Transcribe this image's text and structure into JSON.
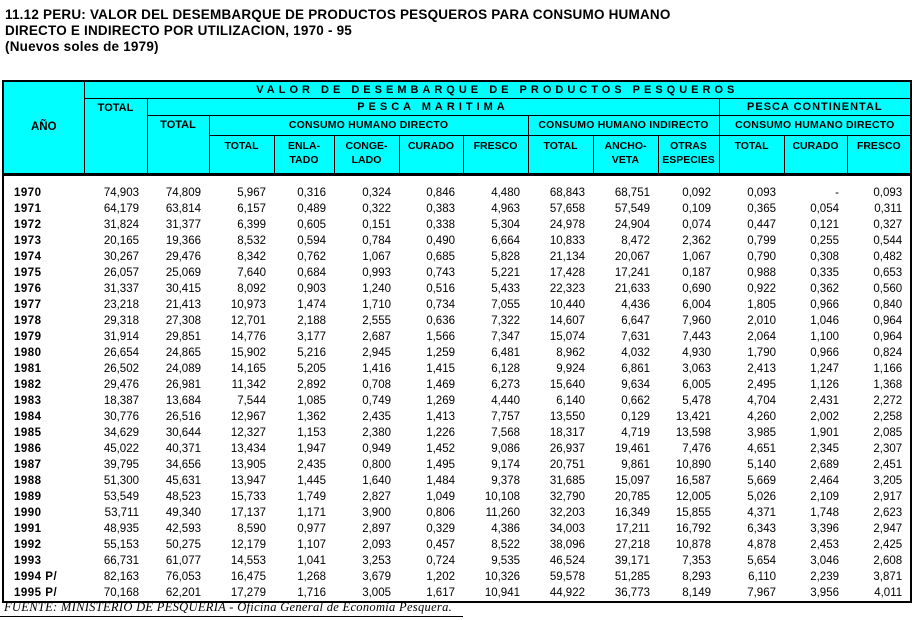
{
  "title": {
    "line1": "11.12   PERU:  VALOR DEL DESEMBARQUE DE PRODUCTOS PESQUEROS PARA CONSUMO HUMANO",
    "line2": "DIRECTO E INDIRECTO POR UTILIZACION, 1970 - 95",
    "line3": "(Nuevos soles  de  1979)"
  },
  "table": {
    "header": {
      "anio": "AÑO",
      "total": "TOTAL",
      "valor": "VALOR  DE  DESEMBARQUE  DE  PRODUCTOS  PESQUEROS",
      "pesca_maritima": "PESCA    MARITIMA",
      "pesca_continental": "PESCA   CONTINENTAL",
      "pm_total": "TOTAL",
      "chd": "CONSUMO HUMANO DIRECTO",
      "chi": "CONSUMO HUMANO INDIRECTO",
      "pc_chd": "CONSUMO HUMANO DIRECTO",
      "sub": [
        "TOTAL",
        "ENLA-\nTADO",
        "CONGE-\nLADO",
        "CURADO",
        "FRESCO",
        "TOTAL",
        "ANCHO-\nVETA",
        "OTRAS\nESPECIES",
        "TOTAL",
        "CURADO",
        "FRESCO"
      ]
    },
    "rows": [
      {
        "year": "1970",
        "values": [
          "74,903",
          "74,809",
          "5,967",
          "0,316",
          "0,324",
          "0,846",
          "4,480",
          "68,843",
          "68,751",
          "0,092",
          "0,093",
          "-",
          "0,093"
        ]
      },
      {
        "year": "1971",
        "values": [
          "64,179",
          "63,814",
          "6,157",
          "0,489",
          "0,322",
          "0,383",
          "4,963",
          "57,658",
          "57,549",
          "0,109",
          "0,365",
          "0,054",
          "0,311"
        ]
      },
      {
        "year": "1972",
        "values": [
          "31,824",
          "31,377",
          "6,399",
          "0,605",
          "0,151",
          "0,338",
          "5,304",
          "24,978",
          "24,904",
          "0,074",
          "0,447",
          "0,121",
          "0,327"
        ]
      },
      {
        "year": "1973",
        "values": [
          "20,165",
          "19,366",
          "8,532",
          "0,594",
          "0,784",
          "0,490",
          "6,664",
          "10,833",
          "8,472",
          "2,362",
          "0,799",
          "0,255",
          "0,544"
        ]
      },
      {
        "year": "1974",
        "values": [
          "30,267",
          "29,476",
          "8,342",
          "0,762",
          "1,067",
          "0,685",
          "5,828",
          "21,134",
          "20,067",
          "1,067",
          "0,790",
          "0,308",
          "0,482"
        ]
      },
      {
        "year": "1975",
        "values": [
          "26,057",
          "25,069",
          "7,640",
          "0,684",
          "0,993",
          "0,743",
          "5,221",
          "17,428",
          "17,241",
          "0,187",
          "0,988",
          "0,335",
          "0,653"
        ]
      },
      {
        "year": "1976",
        "values": [
          "31,337",
          "30,415",
          "8,092",
          "0,903",
          "1,240",
          "0,516",
          "5,433",
          "22,323",
          "21,633",
          "0,690",
          "0,922",
          "0,362",
          "0,560"
        ]
      },
      {
        "year": "1977",
        "values": [
          "23,218",
          "21,413",
          "10,973",
          "1,474",
          "1,710",
          "0,734",
          "7,055",
          "10,440",
          "4,436",
          "6,004",
          "1,805",
          "0,966",
          "0,840"
        ]
      },
      {
        "year": "1978",
        "values": [
          "29,318",
          "27,308",
          "12,701",
          "2,188",
          "2,555",
          "0,636",
          "7,322",
          "14,607",
          "6,647",
          "7,960",
          "2,010",
          "1,046",
          "0,964"
        ]
      },
      {
        "year": "1979",
        "values": [
          "31,914",
          "29,851",
          "14,776",
          "3,177",
          "2,687",
          "1,566",
          "7,347",
          "15,074",
          "7,631",
          "7,443",
          "2,064",
          "1,100",
          "0,964"
        ]
      },
      {
        "year": "1980",
        "values": [
          "26,654",
          "24,865",
          "15,902",
          "5,216",
          "2,945",
          "1,259",
          "6,481",
          "8,962",
          "4,032",
          "4,930",
          "1,790",
          "0,966",
          "0,824"
        ]
      },
      {
        "year": "1981",
        "values": [
          "26,502",
          "24,089",
          "14,165",
          "5,205",
          "1,416",
          "1,415",
          "6,128",
          "9,924",
          "6,861",
          "3,063",
          "2,413",
          "1,247",
          "1,166"
        ]
      },
      {
        "year": "1982",
        "values": [
          "29,476",
          "26,981",
          "11,342",
          "2,892",
          "0,708",
          "1,469",
          "6,273",
          "15,640",
          "9,634",
          "6,005",
          "2,495",
          "1,126",
          "1,368"
        ]
      },
      {
        "year": "1983",
        "values": [
          "18,387",
          "13,684",
          "7,544",
          "1,085",
          "0,749",
          "1,269",
          "4,440",
          "6,140",
          "0,662",
          "5,478",
          "4,704",
          "2,431",
          "2,272"
        ]
      },
      {
        "year": "1984",
        "values": [
          "30,776",
          "26,516",
          "12,967",
          "1,362",
          "2,435",
          "1,413",
          "7,757",
          "13,550",
          "0,129",
          "13,421",
          "4,260",
          "2,002",
          "2,258"
        ]
      },
      {
        "year": "1985",
        "values": [
          "34,629",
          "30,644",
          "12,327",
          "1,153",
          "2,380",
          "1,226",
          "7,568",
          "18,317",
          "4,719",
          "13,598",
          "3,985",
          "1,901",
          "2,085"
        ]
      },
      {
        "year": "1986",
        "values": [
          "45,022",
          "40,371",
          "13,434",
          "1,947",
          "0,949",
          "1,452",
          "9,086",
          "26,937",
          "19,461",
          "7,476",
          "4,651",
          "2,345",
          "2,307"
        ]
      },
      {
        "year": "1987",
        "values": [
          "39,795",
          "34,656",
          "13,905",
          "2,435",
          "0,800",
          "1,495",
          "9,174",
          "20,751",
          "9,861",
          "10,890",
          "5,140",
          "2,689",
          "2,451"
        ]
      },
      {
        "year": "1988",
        "values": [
          "51,300",
          "45,631",
          "13,947",
          "1,445",
          "1,640",
          "1,484",
          "9,378",
          "31,685",
          "15,097",
          "16,587",
          "5,669",
          "2,464",
          "3,205"
        ]
      },
      {
        "year": "1989",
        "values": [
          "53,549",
          "48,523",
          "15,733",
          "1,749",
          "2,827",
          "1,049",
          "10,108",
          "32,790",
          "20,785",
          "12,005",
          "5,026",
          "2,109",
          "2,917"
        ]
      },
      {
        "year": "1990",
        "values": [
          "53,711",
          "49,340",
          "17,137",
          "1,171",
          "3,900",
          "0,806",
          "11,260",
          "32,203",
          "16,349",
          "15,855",
          "4,371",
          "1,748",
          "2,623"
        ]
      },
      {
        "year": "1991",
        "values": [
          "48,935",
          "42,593",
          "8,590",
          "0,977",
          "2,897",
          "0,329",
          "4,386",
          "34,003",
          "17,211",
          "16,792",
          "6,343",
          "3,396",
          "2,947"
        ]
      },
      {
        "year": "1992",
        "values": [
          "55,153",
          "50,275",
          "12,179",
          "1,107",
          "2,093",
          "0,457",
          "8,522",
          "38,096",
          "27,218",
          "10,878",
          "4,878",
          "2,453",
          "2,425"
        ]
      },
      {
        "year": "1993",
        "values": [
          "66,731",
          "61,077",
          "14,553",
          "1,041",
          "3,253",
          "0,724",
          "9,535",
          "46,524",
          "39,171",
          "7,353",
          "5,654",
          "3,046",
          "2,608"
        ]
      },
      {
        "year": "1994  P/",
        "values": [
          "82,163",
          "76,053",
          "16,475",
          "1,268",
          "3,679",
          "1,202",
          "10,326",
          "59,578",
          "51,285",
          "8,293",
          "6,110",
          "2,239",
          "3,871"
        ]
      },
      {
        "year": "1995  P/",
        "values": [
          "70,168",
          "62,201",
          "17,279",
          "1,716",
          "3,005",
          "1,617",
          "10,941",
          "44,922",
          "36,773",
          "8,149",
          "7,967",
          "3,956",
          "4,011"
        ]
      }
    ]
  },
  "footer": {
    "source": "FUENTE:  MINISTERIO DE PESQUERIA - Oficina General de Economía Pesquera."
  },
  "colors": {
    "header_bg": "#00FFFF",
    "border": "#000000",
    "text": "#000000"
  }
}
